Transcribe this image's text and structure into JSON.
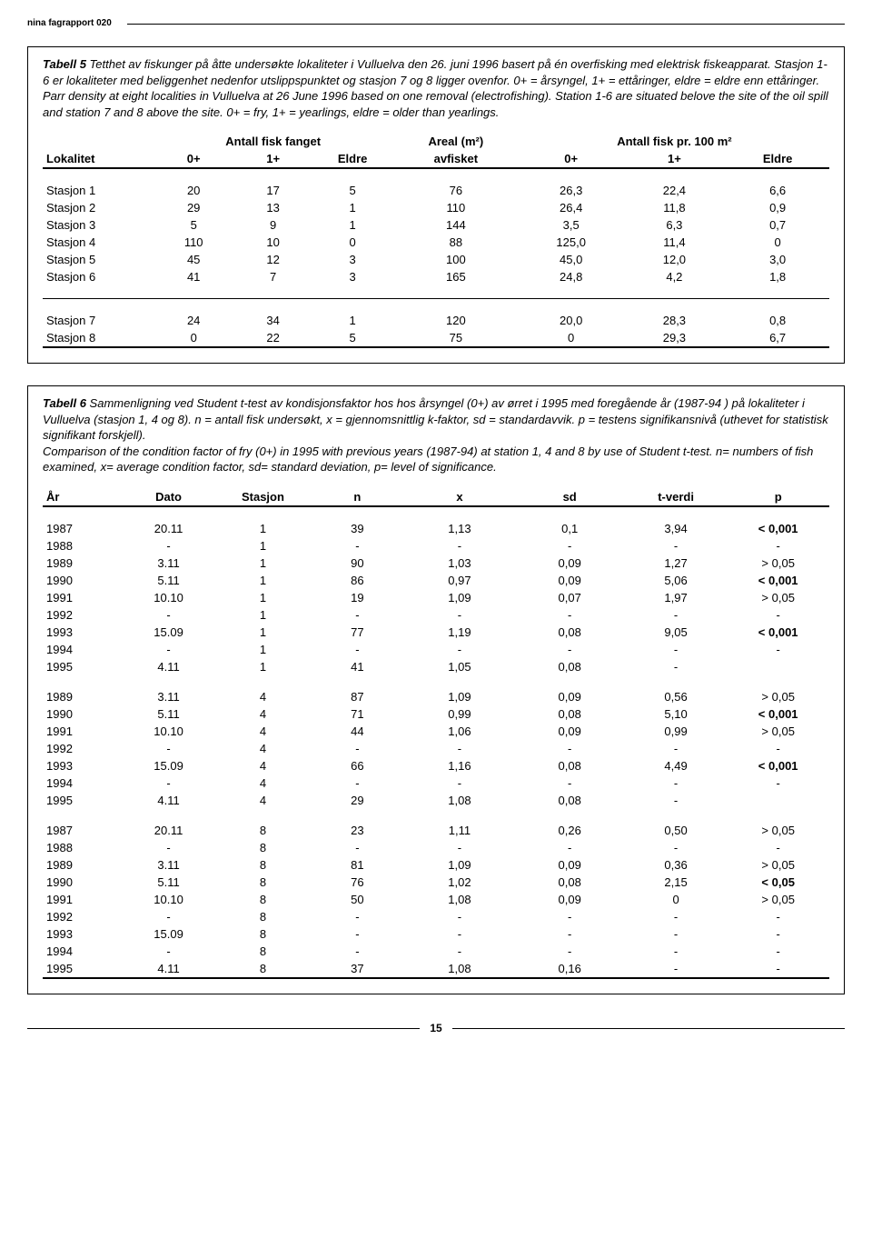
{
  "header": "nina fagrapport 020",
  "footer_page": "15",
  "table5": {
    "caption_strong": "Tabell 5",
    "caption_rest": " Tetthet av fiskunger på åtte undersøkte lokaliteter i Vulluelva den 26. juni 1996 basert på én overfisking med elektrisk fiskeapparat. Stasjon 1-6 er lokaliteter med beliggenhet nedenfor utslippspunktet og stasjon 7 og 8 ligger ovenfor. 0+ = årsyngel, 1+ = ettåringer, eldre = eldre enn ettåringer.",
    "caption_en": "Parr density at eight localities in Vulluelva at 26 June 1996 based on one removal (electrofishing). Station 1-6 are situated belove the site of the oil spill and station 7 and 8 above the site. 0+ = fry, 1+ = yearlings, eldre = older than yearlings.",
    "group_headers": {
      "g1": "Antall fisk fanget",
      "g2": "Areal (m²)",
      "g3": "Antall fisk pr. 100 m²"
    },
    "columns": [
      "Lokalitet",
      "0+",
      "1+",
      "Eldre",
      "avfisket",
      "0+",
      "1+",
      "Eldre"
    ],
    "rows_a": [
      [
        "Stasjon 1",
        "20",
        "17",
        "5",
        "76",
        "26,3",
        "22,4",
        "6,6"
      ],
      [
        "Stasjon 2",
        "29",
        "13",
        "1",
        "110",
        "26,4",
        "11,8",
        "0,9"
      ],
      [
        "Stasjon 3",
        "5",
        "9",
        "1",
        "144",
        "3,5",
        "6,3",
        "0,7"
      ],
      [
        "Stasjon 4",
        "110",
        "10",
        "0",
        "88",
        "125,0",
        "11,4",
        "0"
      ],
      [
        "Stasjon 5",
        "45",
        "12",
        "3",
        "100",
        "45,0",
        "12,0",
        "3,0"
      ],
      [
        "Stasjon 6",
        "41",
        "7",
        "3",
        "165",
        "24,8",
        "4,2",
        "1,8"
      ]
    ],
    "rows_b": [
      [
        "Stasjon 7",
        "24",
        "34",
        "1",
        "120",
        "20,0",
        "28,3",
        "0,8"
      ],
      [
        "Stasjon 8",
        "0",
        "22",
        "5",
        "75",
        "0",
        "29,3",
        "6,7"
      ]
    ],
    "col_widths_pct": [
      14,
      10,
      10,
      10,
      16,
      13,
      13,
      13
    ]
  },
  "table6": {
    "caption_strong": "Tabell 6",
    "caption_rest": " Sammenligning ved Student t-test av kondisjonsfaktor hos hos årsyngel (0+) av ørret i 1995 med foregående år (1987-94 ) på lokaliteter i Vulluelva (stasjon 1, 4 og 8). n = antall fisk undersøkt, x = gjennomsnittlig k-faktor, sd = standardavvik. p = testens signifikansnivå (uthevet for statistisk signifikant forskjell).",
    "caption_en": "Comparison of the condition factor of fry (0+) in 1995 with previous years (1987-94) at station 1, 4 and 8 by use of Student t-test. n= numbers of fish examined, x= average condition factor, sd= standard deviation, p= level of significance.",
    "columns": [
      "År",
      "Dato",
      "Stasjon",
      "n",
      "x",
      "sd",
      "t-verdi",
      "p"
    ],
    "blocks": [
      [
        [
          "1987",
          "20.11",
          "1",
          "39",
          "1,13",
          "0,1",
          "3,94",
          "< 0,001",
          true
        ],
        [
          "1988",
          "-",
          "1",
          "-",
          "-",
          "-",
          "-",
          "-",
          false
        ],
        [
          "1989",
          "3.11",
          "1",
          "90",
          "1,03",
          "0,09",
          "1,27",
          "> 0,05",
          false
        ],
        [
          "1990",
          "5.11",
          "1",
          "86",
          "0,97",
          "0,09",
          "5,06",
          "< 0,001",
          true
        ],
        [
          "1991",
          "10.10",
          "1",
          "19",
          "1,09",
          "0,07",
          "1,97",
          "> 0,05",
          false
        ],
        [
          "1992",
          "-",
          "1",
          "-",
          "-",
          "-",
          "-",
          "-",
          false
        ],
        [
          "1993",
          "15.09",
          "1",
          "77",
          "1,19",
          "0,08",
          "9,05",
          "< 0,001",
          true
        ],
        [
          "1994",
          "-",
          "1",
          "-",
          "-",
          "-",
          "-",
          "-",
          false
        ],
        [
          "1995",
          "4.11",
          "1",
          "41",
          "1,05",
          "0,08",
          "-",
          "",
          false
        ]
      ],
      [
        [
          "1989",
          "3.11",
          "4",
          "87",
          "1,09",
          "0,09",
          "0,56",
          "> 0,05",
          false
        ],
        [
          "1990",
          "5.11",
          "4",
          "71",
          "0,99",
          "0,08",
          "5,10",
          "< 0,001",
          true
        ],
        [
          "1991",
          "10.10",
          "4",
          "44",
          "1,06",
          "0,09",
          "0,99",
          "> 0,05",
          false
        ],
        [
          "1992",
          "-",
          "4",
          "-",
          "-",
          "-",
          "-",
          "-",
          false
        ],
        [
          "1993",
          "15.09",
          "4",
          "66",
          "1,16",
          "0,08",
          "4,49",
          "< 0,001",
          true
        ],
        [
          "1994",
          "-",
          "4",
          "-",
          "-",
          "-",
          "-",
          "-",
          false
        ],
        [
          "1995",
          "4.11",
          "4",
          "29",
          "1,08",
          "0,08",
          "-",
          "",
          false
        ]
      ],
      [
        [
          "1987",
          "20.11",
          "8",
          "23",
          "1,11",
          "0,26",
          "0,50",
          "> 0,05",
          false
        ],
        [
          "1988",
          "-",
          "8",
          "-",
          "-",
          "-",
          "-",
          "-",
          false
        ],
        [
          "1989",
          "3.11",
          "8",
          "81",
          "1,09",
          "0,09",
          "0,36",
          "> 0,05",
          false
        ],
        [
          "1990",
          "5.11",
          "8",
          "76",
          "1,02",
          "0,08",
          "2,15",
          "< 0,05",
          true
        ],
        [
          "1991",
          "10.10",
          "8",
          "50",
          "1,08",
          "0,09",
          "0",
          "> 0,05",
          false
        ],
        [
          "1992",
          "-",
          "8",
          "-",
          "-",
          "-",
          "-",
          "-",
          false
        ],
        [
          "1993",
          "15.09",
          "8",
          "-",
          "-",
          "-",
          "-",
          "-",
          false
        ],
        [
          "1994",
          "-",
          "8",
          "-",
          "-",
          "-",
          "-",
          "-",
          false
        ],
        [
          "1995",
          "4.11",
          "8",
          "37",
          "1,08",
          "0,16",
          "-",
          "-",
          false
        ]
      ]
    ],
    "col_widths_pct": [
      10,
      12,
      12,
      12,
      14,
      14,
      13,
      13
    ]
  }
}
